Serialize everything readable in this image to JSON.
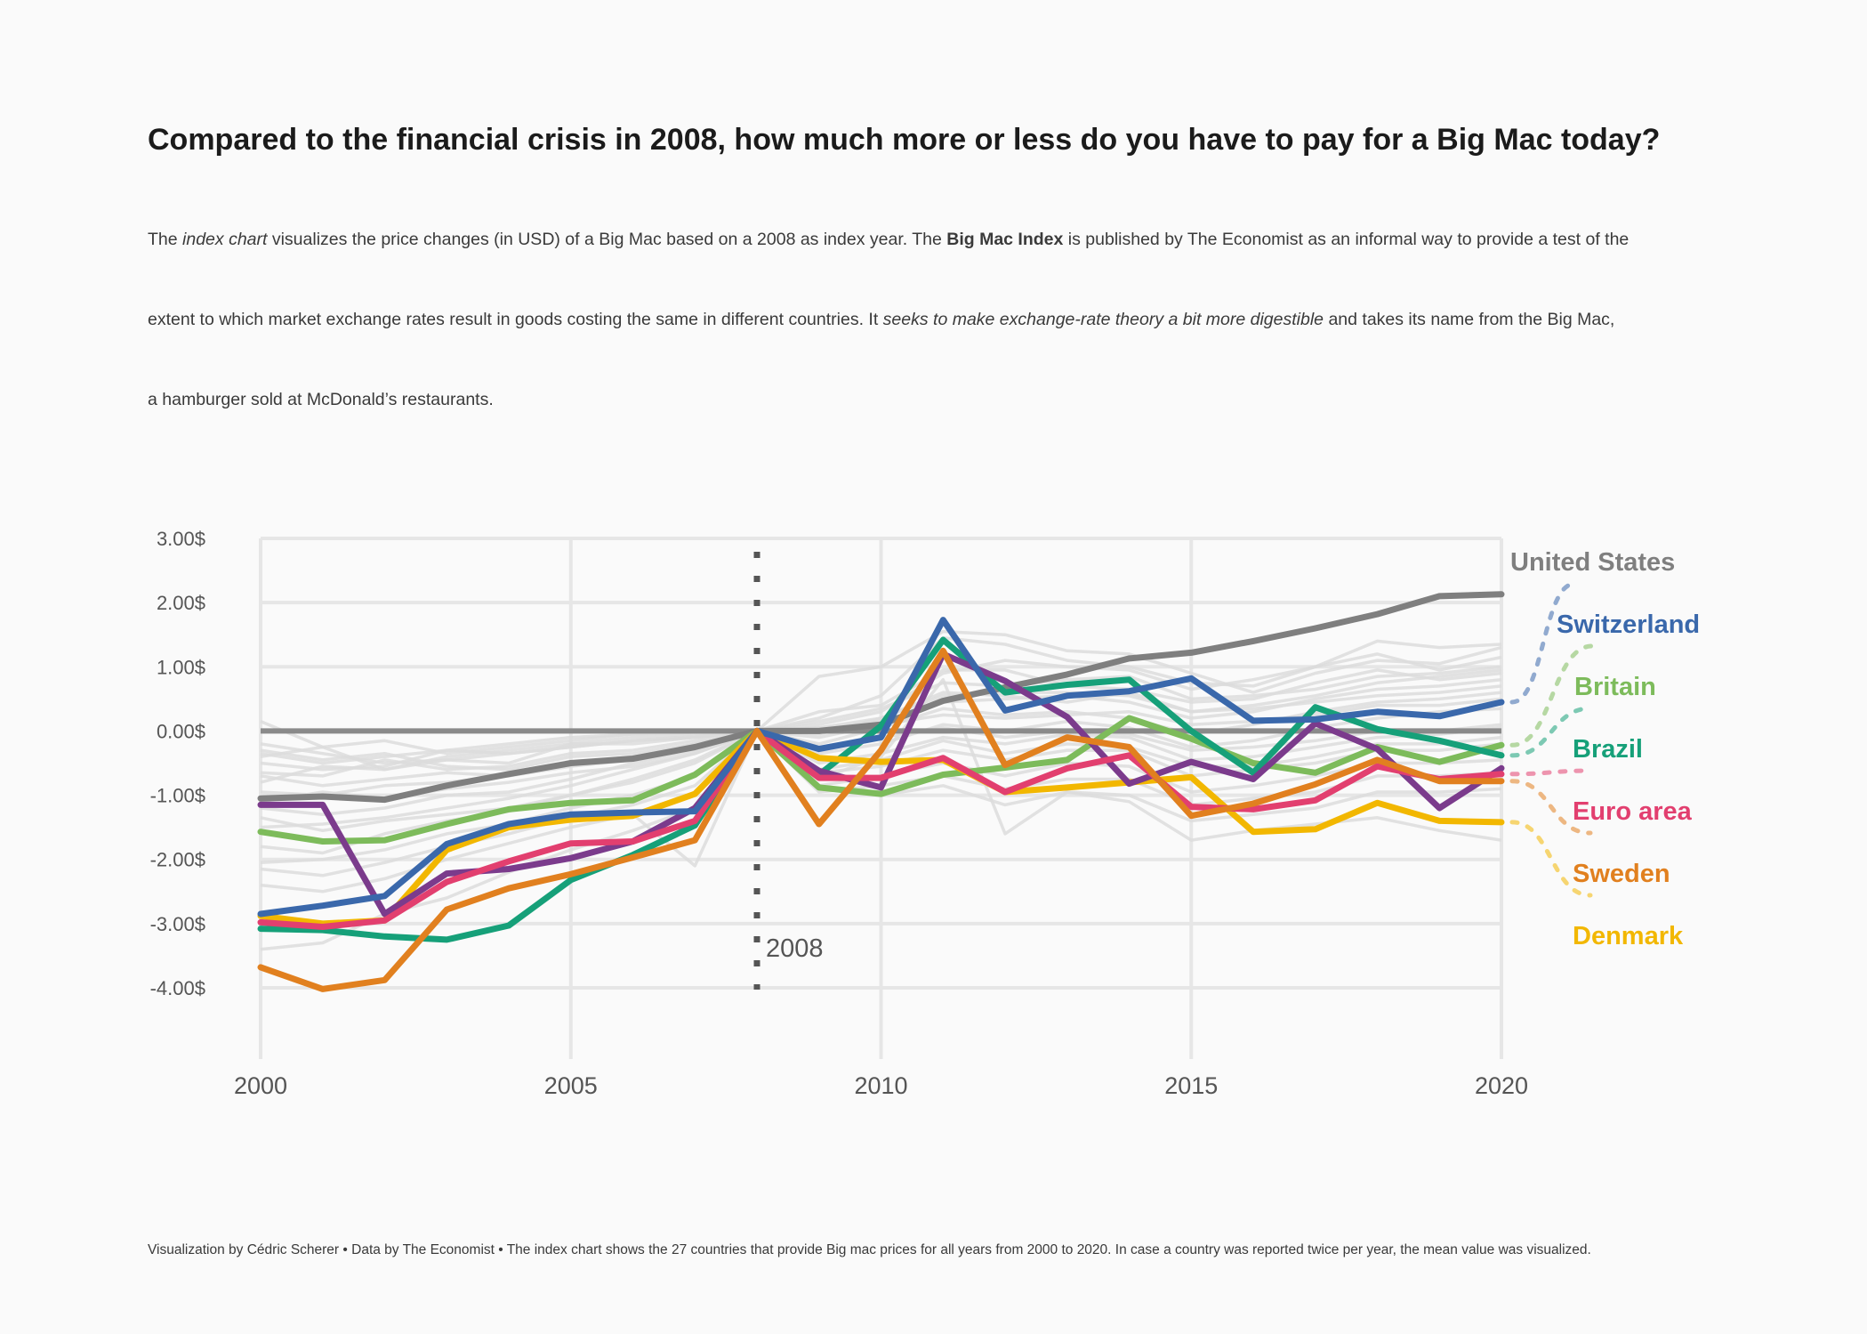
{
  "title": "Compared to the financial crisis in 2008, how much more or less do you have to pay for a Big Mac today?",
  "subtitle": {
    "line1": [
      {
        "t": "The ",
        "s": "n"
      },
      {
        "t": "index chart",
        "s": "i"
      },
      {
        "t": " visualizes the price changes (in USD) of a Big Mac based on a 2008 as index year. The ",
        "s": "n"
      },
      {
        "t": "Big Mac Index",
        "s": "b"
      },
      {
        "t": " is published by The Economist as an informal way to provide a test of the",
        "s": "n"
      }
    ],
    "line2": [
      {
        "t": "extent to which market exchange rates result in goods costing the same in different countries. It ",
        "s": "n"
      },
      {
        "t": "seeks to make exchange-rate theory a bit more digestible",
        "s": "i"
      },
      {
        "t": " and takes its name from the Big Mac,",
        "s": "n"
      }
    ],
    "line3": [
      {
        "t": "a hamburger sold at McDonald’s restaurants.",
        "s": "n"
      }
    ]
  },
  "caption": "Visualization by Cédric Scherer  •  Data by The Economist  •  The index chart shows the 27 countries that provide Big mac prices for all years from 2000 to 2020. In case a country was reported twice per year, the mean value was visualized.",
  "chart_data": {
    "type": "line",
    "x": [
      2000,
      2001,
      2002,
      2003,
      2004,
      2005,
      2006,
      2007,
      2008,
      2009,
      2010,
      2011,
      2012,
      2013,
      2014,
      2015,
      2016,
      2017,
      2018,
      2019,
      2020
    ],
    "xlim": [
      2000,
      2020
    ],
    "ylim": [
      -4,
      3
    ],
    "x_ticks": [
      2000,
      2005,
      2010,
      2015,
      2020
    ],
    "x_tick_labels": [
      "2000",
      "2005",
      "2010",
      "2015",
      "2020"
    ],
    "y_ticks": [
      3,
      2,
      1,
      0,
      -1,
      -2,
      -3,
      -4
    ],
    "y_tick_labels": [
      "3.00$",
      "2.00$",
      "1.00$",
      "0.00$",
      "-1.00$",
      "-2.00$",
      "-3.00$",
      "-4.00$"
    ],
    "reference_year": 2008,
    "reference_label": "2008",
    "grid": true,
    "legend": "direct labels at right",
    "baseline_color": "#8a8a8a",
    "background_color": "#dcdcdc",
    "highlighted": [
      {
        "name": "United States",
        "color": "#7f7f7f",
        "values": [
          -1.05,
          -1.02,
          -1.07,
          -0.85,
          -0.67,
          -0.5,
          -0.43,
          -0.25,
          0,
          0,
          0.1,
          0.47,
          0.68,
          0.88,
          1.13,
          1.22,
          1.4,
          1.6,
          1.82,
          2.1,
          2.13
        ]
      },
      {
        "name": "Switzerland",
        "color": "#3a68ab",
        "values": [
          -2.85,
          -2.72,
          -2.57,
          -1.76,
          -1.45,
          -1.3,
          -1.27,
          -1.25,
          0,
          -0.28,
          -0.1,
          1.73,
          0.32,
          0.55,
          0.62,
          0.82,
          0.16,
          0.18,
          0.3,
          0.23,
          0.45
        ]
      },
      {
        "name": "Britain",
        "color": "#7dbb5b",
        "values": [
          -1.57,
          -1.72,
          -1.7,
          -1.45,
          -1.22,
          -1.12,
          -1.08,
          -0.68,
          0,
          -0.88,
          -0.98,
          -0.68,
          -0.57,
          -0.45,
          0.2,
          -0.12,
          -0.5,
          -0.65,
          -0.25,
          -0.48,
          -0.22
        ]
      },
      {
        "name": "Brazil",
        "color": "#16a079",
        "values": [
          -3.08,
          -3.1,
          -3.2,
          -3.25,
          -3.03,
          -2.32,
          -1.93,
          -1.47,
          0,
          -0.68,
          0.08,
          1.42,
          0.6,
          0.72,
          0.8,
          0,
          -0.65,
          0.37,
          0.03,
          -0.15,
          -0.38
        ]
      },
      {
        "name": "Euro area",
        "color": "#e23f6f",
        "values": [
          -2.98,
          -3.05,
          -2.95,
          -2.35,
          -2.03,
          -1.75,
          -1.72,
          -1.4,
          0,
          -0.73,
          -0.73,
          -0.42,
          -0.95,
          -0.58,
          -0.38,
          -1.18,
          -1.22,
          -1.08,
          -0.55,
          -0.75,
          -0.67
        ]
      },
      {
        "name": "Sweden",
        "color": "#e1801f",
        "values": [
          -3.68,
          -4.02,
          -3.88,
          -2.78,
          -2.45,
          -2.23,
          -1.97,
          -1.7,
          0,
          -1.45,
          -0.3,
          1.25,
          -0.53,
          -0.1,
          -0.25,
          -1.32,
          -1.13,
          -0.83,
          -0.45,
          -0.78,
          -0.78
        ]
      },
      {
        "name": "Denmark",
        "color": "#f2b700",
        "values": [
          -2.88,
          -3.0,
          -2.95,
          -1.85,
          -1.5,
          -1.38,
          -1.32,
          -0.98,
          0,
          -0.42,
          -0.48,
          -0.45,
          -0.95,
          -0.88,
          -0.8,
          -0.72,
          -1.57,
          -1.53,
          -1.12,
          -1.4,
          -1.42
        ]
      },
      {
        "name": "",
        "color": "#7b3b8c",
        "values": [
          -1.15,
          -1.15,
          -2.85,
          -2.22,
          -2.15,
          -1.98,
          -1.72,
          -1.2,
          0,
          -0.62,
          -0.88,
          1.2,
          0.78,
          0.22,
          -0.82,
          -0.48,
          -0.75,
          0.12,
          -0.28,
          -1.2,
          -0.58
        ]
      }
    ],
    "labels": [
      {
        "name": "United States",
        "color": "#7f7f7f"
      },
      {
        "name": "Switzerland",
        "color": "#3a68ab"
      },
      {
        "name": "Britain",
        "color": "#7dbb5b"
      },
      {
        "name": "Brazil",
        "color": "#16a079"
      },
      {
        "name": "Euro area",
        "color": "#e23f6f"
      },
      {
        "name": "Sweden",
        "color": "#e1801f"
      },
      {
        "name": "Denmark",
        "color": "#f2b700"
      }
    ],
    "background_series": [
      [
        0.15,
        -0.25,
        -0.6,
        -0.45,
        -0.5,
        -0.2,
        -0.1,
        -0.05,
        0,
        0.85,
        1.0,
        1.55,
        1.5,
        1.25,
        1.2,
        0.9,
        0.6,
        0.9,
        1.1,
        1.05,
        1.3
      ],
      [
        -0.3,
        -0.45,
        -0.35,
        -0.55,
        -0.6,
        -0.4,
        -0.35,
        -0.2,
        0,
        0.2,
        0.55,
        1.45,
        1.35,
        1.1,
        1.0,
        0.75,
        0.7,
        1.0,
        1.4,
        1.3,
        1.35
      ],
      [
        -0.5,
        -0.6,
        -0.55,
        -0.3,
        -0.35,
        -0.25,
        -0.15,
        -0.1,
        0,
        0.1,
        0.3,
        0.9,
        1.1,
        1.0,
        0.95,
        0.65,
        0.8,
        1.0,
        1.2,
        0.95,
        1.15
      ],
      [
        -0.65,
        -0.7,
        -0.45,
        -0.6,
        -0.55,
        -0.35,
        -0.3,
        -0.15,
        0,
        0.15,
        0.35,
        0.75,
        0.7,
        0.8,
        0.85,
        0.5,
        0.55,
        0.65,
        0.85,
        0.9,
        1.0
      ],
      [
        -0.8,
        -0.55,
        -0.6,
        -0.4,
        -0.3,
        -0.2,
        -0.2,
        -0.1,
        0,
        -0.05,
        0.2,
        0.6,
        0.55,
        0.45,
        0.6,
        0.3,
        0.4,
        0.55,
        0.75,
        0.85,
        0.95
      ],
      [
        -0.2,
        -0.35,
        -0.5,
        -0.45,
        -0.35,
        -0.25,
        -0.15,
        -0.08,
        0,
        0.05,
        0.15,
        0.45,
        0.5,
        0.55,
        0.45,
        0.2,
        0.3,
        0.5,
        0.65,
        0.7,
        0.8
      ],
      [
        -0.95,
        -1.0,
        -0.85,
        -0.8,
        -0.7,
        -0.5,
        -0.4,
        -0.25,
        0,
        -0.2,
        0.05,
        0.35,
        0.25,
        0.3,
        0.2,
        -0.05,
        0.1,
        0.3,
        0.45,
        0.5,
        0.6
      ],
      [
        -1.2,
        -1.3,
        -1.2,
        -1.0,
        -0.95,
        -0.75,
        -0.5,
        -0.3,
        0,
        -0.35,
        -0.2,
        0.1,
        0.0,
        0.15,
        0.05,
        -0.25,
        -0.15,
        0.05,
        0.2,
        0.3,
        0.35
      ],
      [
        -1.5,
        -1.45,
        -1.35,
        -1.2,
        -1.05,
        -0.85,
        -0.6,
        -0.35,
        0,
        -0.5,
        -0.35,
        -0.1,
        -0.2,
        -0.05,
        -0.1,
        -0.45,
        -0.4,
        -0.25,
        -0.1,
        -0.05,
        0.05
      ],
      [
        -1.8,
        -1.9,
        -1.6,
        -1.4,
        -1.25,
        -1.0,
        -0.8,
        -0.5,
        0,
        -0.65,
        -0.55,
        -0.3,
        -0.45,
        -0.3,
        -0.3,
        -0.7,
        -0.6,
        -0.5,
        -0.3,
        -0.3,
        -0.2
      ],
      [
        -2.05,
        -2.0,
        -1.85,
        -1.6,
        -1.45,
        -1.2,
        -1.0,
        -0.7,
        0,
        -0.85,
        -0.7,
        -0.5,
        -0.7,
        -0.5,
        -0.55,
        -0.95,
        -0.85,
        -0.7,
        -0.5,
        -0.5,
        -0.45
      ],
      [
        -2.15,
        -2.25,
        -2.05,
        -1.8,
        -1.6,
        -1.35,
        -1.15,
        -0.85,
        0,
        -0.95,
        -0.85,
        -0.7,
        -0.9,
        -0.75,
        -0.75,
        -1.15,
        -1.05,
        -0.95,
        -0.7,
        -0.7,
        -0.65
      ],
      [
        -2.4,
        -2.5,
        -2.3,
        -2.0,
        -1.75,
        -1.5,
        -1.3,
        -2.1,
        0,
        -0.9,
        -1.0,
        -0.85,
        -1.15,
        -0.95,
        -1.0,
        -1.4,
        -1.3,
        -1.2,
        -0.95,
        -0.95,
        -0.9
      ],
      [
        -3.4,
        -3.3,
        -2.85,
        -2.6,
        -2.2,
        -1.85,
        -1.55,
        -1.2,
        0,
        -0.75,
        -0.4,
        0.8,
        -1.6,
        -0.95,
        -1.1,
        -1.7,
        -1.55,
        -1.45,
        -1.35,
        -1.55,
        -1.7
      ],
      [
        -0.4,
        -0.25,
        -0.15,
        -0.35,
        -0.25,
        -0.15,
        -0.05,
        0.0,
        0,
        0.3,
        0.4,
        0.95,
        0.95,
        0.7,
        0.65,
        0.45,
        0.5,
        0.75,
        0.95,
        0.8,
        0.9
      ],
      [
        -0.7,
        -0.85,
        -0.75,
        -0.65,
        -0.7,
        -0.55,
        -0.45,
        -0.2,
        0,
        -0.1,
        0.1,
        0.25,
        0.2,
        0.25,
        0.3,
        0.1,
        0.15,
        0.25,
        0.4,
        0.4,
        0.5
      ],
      [
        -1.1,
        -0.95,
        -1.05,
        -0.9,
        -0.8,
        -0.65,
        -0.55,
        -0.35,
        0,
        -0.25,
        -0.1,
        0.05,
        -0.1,
        0.0,
        -0.05,
        -0.3,
        -0.25,
        -0.15,
        0.0,
        0.0,
        0.1
      ],
      [
        -0.35,
        -0.5,
        -0.4,
        -0.3,
        -0.2,
        -0.1,
        -0.05,
        -0.02,
        0,
        0.05,
        0.2,
        0.55,
        0.6,
        0.6,
        0.55,
        0.3,
        0.35,
        0.45,
        0.55,
        0.6,
        0.7
      ],
      [
        -1.35,
        -1.55,
        -1.4,
        -1.3,
        -1.2,
        -1.0,
        -0.75,
        -0.45,
        0,
        -0.6,
        -0.45,
        -0.15,
        -0.35,
        -0.2,
        -0.25,
        -0.55,
        -0.55,
        -0.4,
        -0.2,
        -0.2,
        -0.1
      ]
    ]
  }
}
